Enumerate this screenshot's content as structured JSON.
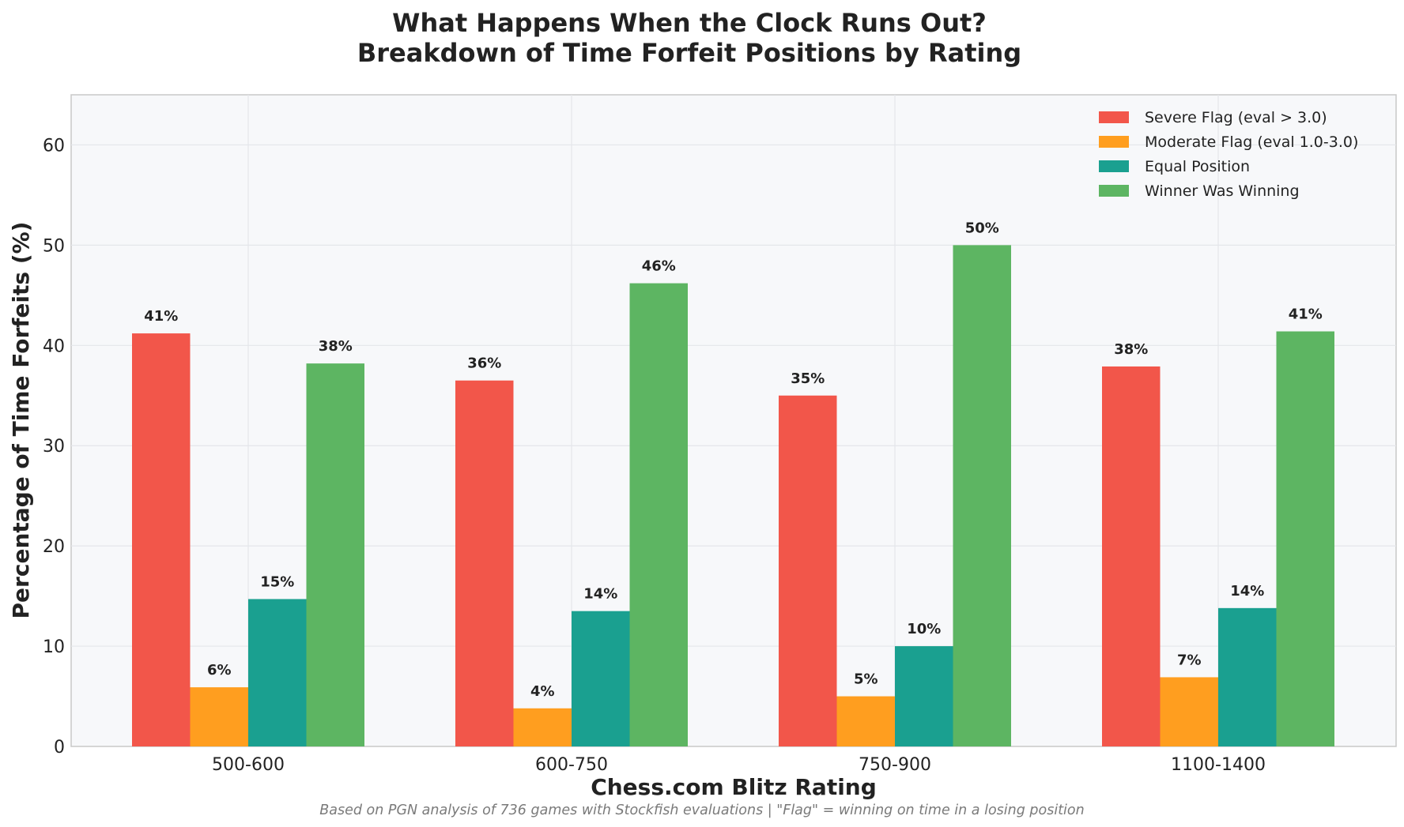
{
  "chart_data": {
    "type": "bar",
    "title_lines": [
      "What Happens When the Clock Runs Out?",
      "Breakdown of Time Forfeit Positions by Rating"
    ],
    "xlabel": "Chess.com Blitz Rating",
    "ylabel": "Percentage of Time Forfeits (%)",
    "footnote": "Based on PGN analysis of 736 games with Stockfish evaluations | \"Flag\" = winning on time in a losing position",
    "categories": [
      "500-600",
      "600-750",
      "750-900",
      "1100-1400"
    ],
    "ylim": [
      0,
      65
    ],
    "yticks": [
      0,
      10,
      20,
      30,
      40,
      50,
      60
    ],
    "grid": true,
    "legend_position": "top-right",
    "background_color": "#f7f8fa",
    "series": [
      {
        "name": "Severe Flag (eval > 3.0)",
        "color": "#f2564a",
        "values": [
          41.2,
          36.5,
          35.0,
          37.9
        ],
        "labels": [
          "41%",
          "36%",
          "35%",
          "38%"
        ]
      },
      {
        "name": "Moderate Flag (eval 1.0-3.0)",
        "color": "#ff9e1f",
        "values": [
          5.9,
          3.8,
          5.0,
          6.9
        ],
        "labels": [
          "6%",
          "4%",
          "5%",
          "7%"
        ]
      },
      {
        "name": "Equal Position",
        "color": "#1aa090",
        "values": [
          14.7,
          13.5,
          10.0,
          13.8
        ],
        "labels": [
          "15%",
          "14%",
          "10%",
          "14%"
        ]
      },
      {
        "name": "Winner Was Winning",
        "color": "#5db562",
        "values": [
          38.2,
          46.2,
          50.0,
          41.4
        ],
        "labels": [
          "38%",
          "46%",
          "50%",
          "41%"
        ]
      }
    ]
  }
}
